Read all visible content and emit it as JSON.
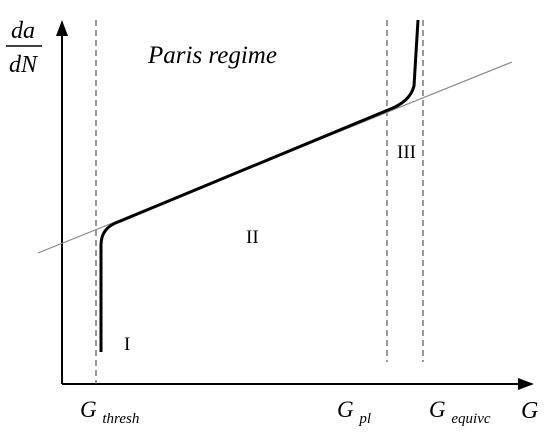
{
  "axes": {
    "y_label_numerator": "da",
    "y_label_denominator": "dN",
    "x_label": "G"
  },
  "title": "Paris regime",
  "regions": {
    "region_1": "I",
    "region_2": "II",
    "region_3": "III"
  },
  "thresholds": {
    "g_thresh_base": "G",
    "g_thresh_sub": "thresh",
    "g_pl_base": "G",
    "g_pl_sub": "pl",
    "g_equivc_base": "G",
    "g_equivc_sub": "equivc"
  },
  "colors": {
    "curve": "#000000",
    "reference_line": "#8a8a8a",
    "dashed": "#555555",
    "axis": "#000000"
  }
}
